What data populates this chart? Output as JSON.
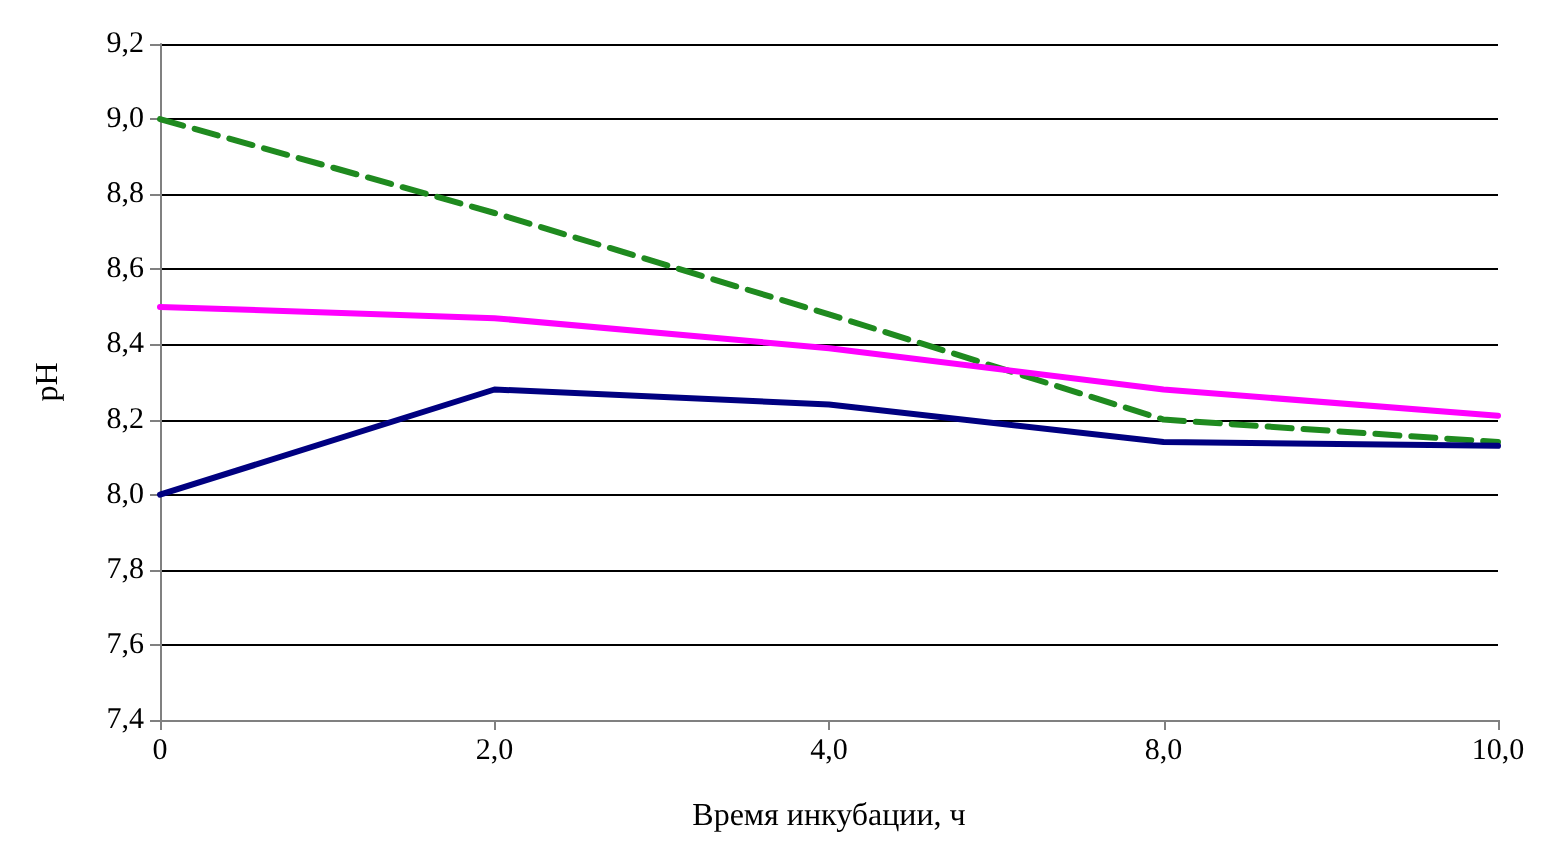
{
  "chart_data": {
    "type": "line",
    "xlabel": "Время инкубации, ч",
    "ylabel": "pH",
    "categories": [
      "0",
      "2,0",
      "4,0",
      "8,0",
      "10,0"
    ],
    "series": [
      {
        "color": "#1f8a1f",
        "values": [
          9.0,
          8.75,
          8.48,
          8.2,
          8.14
        ],
        "line_style": "dashed"
      },
      {
        "color": "#ff00ff",
        "values": [
          8.5,
          8.47,
          8.39,
          8.28,
          8.21
        ],
        "line_style": "solid"
      },
      {
        "color": "#000080",
        "values": [
          8.0,
          8.28,
          8.24,
          8.14,
          8.13
        ],
        "line_style": "solid"
      }
    ],
    "ylim": [
      7.4,
      9.2
    ],
    "yticks": [
      {
        "value": 7.4,
        "label": "7,4"
      },
      {
        "value": 7.6,
        "label": "7,6"
      },
      {
        "value": 7.8,
        "label": "7,8"
      },
      {
        "value": 8.0,
        "label": "8,0"
      },
      {
        "value": 8.2,
        "label": "8,2"
      },
      {
        "value": 8.4,
        "label": "8,4"
      },
      {
        "value": 8.6,
        "label": "8,6"
      },
      {
        "value": 8.8,
        "label": "8,8"
      },
      {
        "value": 9.0,
        "label": "9,0"
      },
      {
        "value": 9.2,
        "label": "9,2"
      }
    ],
    "grid": "y",
    "marker": "none"
  }
}
